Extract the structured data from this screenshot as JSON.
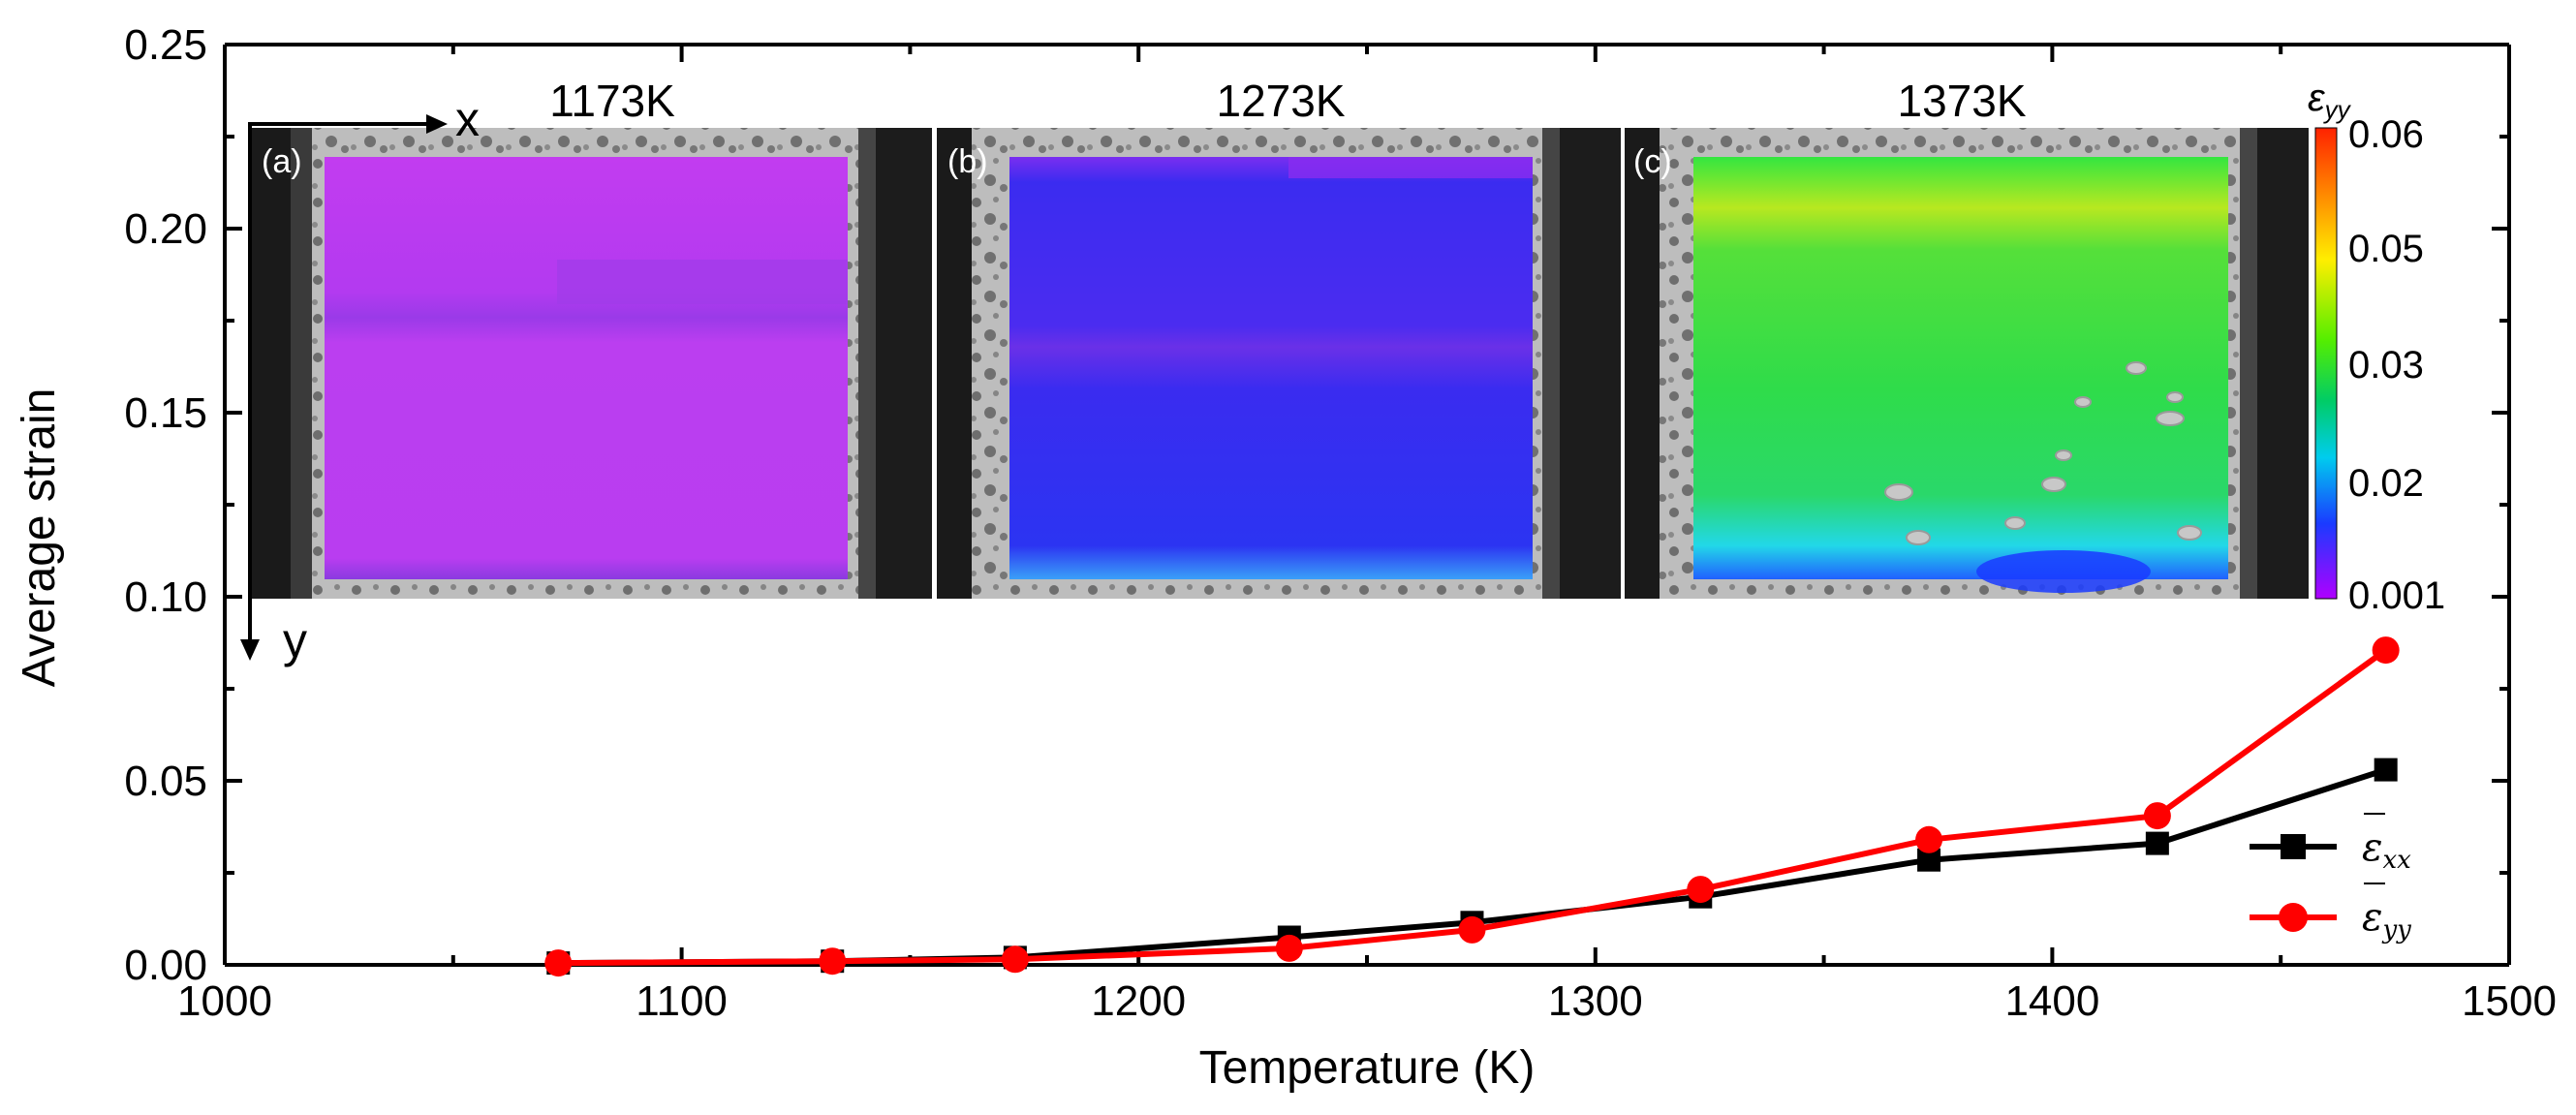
{
  "chart_data": {
    "type": "line",
    "xlabel": "Temperature (K)",
    "ylabel": "Average strain",
    "xlim": [
      1000,
      1500
    ],
    "ylim": [
      0,
      0.25
    ],
    "x_ticks": [
      "1000",
      "1100",
      "1200",
      "1300",
      "1400",
      "1500"
    ],
    "y_ticks": [
      "0.00",
      "0.05",
      "0.10",
      "0.15",
      "0.20",
      "0.25"
    ],
    "grid": false,
    "legend_position": "bottom-right",
    "series": [
      {
        "name": "ε̄xx",
        "symbol": "ε",
        "subscript": "xx",
        "marker": "square",
        "color": "#000000",
        "x": [
          1073,
          1133,
          1173,
          1233,
          1273,
          1323,
          1373,
          1423,
          1473
        ],
        "y": [
          0.0005,
          0.001,
          0.002,
          0.0075,
          0.0115,
          0.0185,
          0.0285,
          0.033,
          0.053
        ]
      },
      {
        "name": "ε̄yy",
        "symbol": "ε",
        "subscript": "yy",
        "marker": "circle",
        "color": "#ff0000",
        "x": [
          1073,
          1133,
          1173,
          1233,
          1273,
          1323,
          1373,
          1423,
          1473
        ],
        "y": [
          0.0005,
          0.001,
          0.0015,
          0.0045,
          0.0095,
          0.0205,
          0.034,
          0.0405,
          0.0855
        ]
      }
    ],
    "insets": [
      {
        "letter": "(a)",
        "title": "1173K",
        "field": "magenta"
      },
      {
        "letter": "(b)",
        "title": "1273K",
        "field": "blue"
      },
      {
        "letter": "(c)",
        "title": "1373K",
        "field": "green"
      }
    ],
    "inset_axes": {
      "x_label": "x",
      "y_label": "y"
    },
    "colorbar": {
      "label": "εyy",
      "symbol": "ε",
      "subscript": "yy",
      "ticks": [
        "0.06",
        "0.05",
        "0.03",
        "0.02",
        "0.001"
      ],
      "colors": [
        "#ff2200",
        "#ffcc00",
        "#66ff00",
        "#00cc55",
        "#00ccee",
        "#1133ff",
        "#aa00ff"
      ]
    }
  }
}
